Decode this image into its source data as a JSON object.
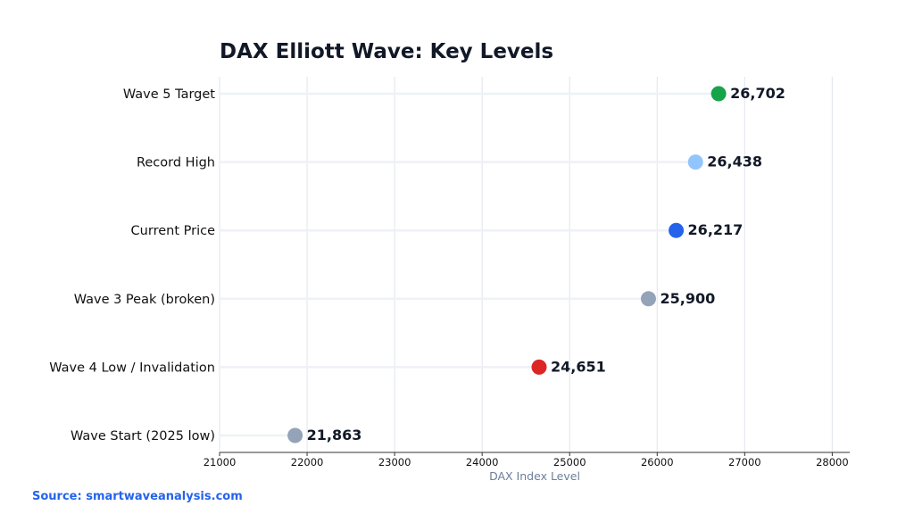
{
  "chart_data": {
    "type": "scatter",
    "title": "DAX Elliott Wave: Key Levels",
    "xlabel": "DAX Index Level",
    "ylabel": "",
    "xlim": [
      21000,
      28200
    ],
    "xticks": [
      "21000",
      "22000",
      "23000",
      "24000",
      "25000",
      "26000",
      "27000",
      "28000"
    ],
    "xtick_values": [
      21000,
      22000,
      23000,
      24000,
      25000,
      26000,
      27000,
      28000
    ],
    "grid": "vertical",
    "points": [
      {
        "label": "Wave 5 Target",
        "value": 26702,
        "value_label": "26,702",
        "color": "#16a34a"
      },
      {
        "label": "Record High",
        "value": 26438,
        "value_label": "26,438",
        "color": "#93c5fd"
      },
      {
        "label": "Current Price",
        "value": 26217,
        "value_label": "26,217",
        "color": "#2563eb"
      },
      {
        "label": "Wave 3 Peak (broken)",
        "value": 25900,
        "value_label": "25,900",
        "color": "#94a3b8"
      },
      {
        "label": "Wave 4 Low / Invalidation",
        "value": 24651,
        "value_label": "24,651",
        "color": "#dc2626"
      },
      {
        "label": "Wave Start (2025 low)",
        "value": 21863,
        "value_label": "21,863",
        "color": "#94a3b8"
      }
    ]
  },
  "source": "Source: smartwaveanalysis.com"
}
